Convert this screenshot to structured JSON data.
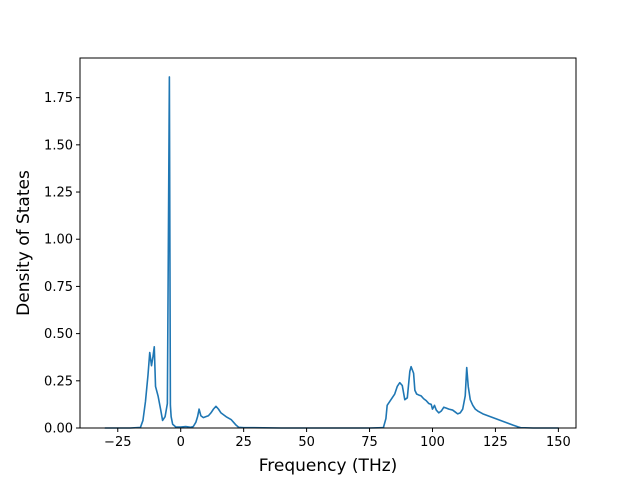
{
  "chart_data": {
    "type": "line",
    "title": "",
    "xlabel": "Frequency (THz)",
    "ylabel": "Density of States",
    "xlim": [
      -40,
      157
    ],
    "ylim": [
      0,
      1.96
    ],
    "xticks": [
      -25,
      0,
      25,
      50,
      75,
      100,
      125,
      150
    ],
    "yticks": [
      0.0,
      0.25,
      0.5,
      0.75,
      1.0,
      1.25,
      1.5,
      1.75
    ],
    "xtick_labels": [
      "−25",
      "0",
      "25",
      "50",
      "75",
      "100",
      "125",
      "150"
    ],
    "ytick_labels": [
      "0.00",
      "0.25",
      "0.50",
      "0.75",
      "1.00",
      "1.25",
      "1.50",
      "1.75"
    ],
    "grid": false,
    "legend": "none",
    "series": [
      {
        "color": "#1f77b4",
        "points": [
          [
            -30,
            0
          ],
          [
            -20,
            0
          ],
          [
            -16,
            0.003
          ],
          [
            -15,
            0.04
          ],
          [
            -14,
            0.14
          ],
          [
            -13,
            0.28
          ],
          [
            -12.3,
            0.4
          ],
          [
            -11.6,
            0.33
          ],
          [
            -11,
            0.38
          ],
          [
            -10.5,
            0.43
          ],
          [
            -10,
            0.22
          ],
          [
            -9,
            0.17
          ],
          [
            -8,
            0.1
          ],
          [
            -7.2,
            0.04
          ],
          [
            -6.2,
            0.06
          ],
          [
            -5.3,
            0.13
          ],
          [
            -4.5,
            1.86
          ],
          [
            -4.1,
            0.12
          ],
          [
            -3.8,
            0.06
          ],
          [
            -3.2,
            0.02
          ],
          [
            -2,
            0.006
          ],
          [
            0,
            0.005
          ],
          [
            2,
            0.008
          ],
          [
            4,
            0.004
          ],
          [
            5,
            0.008
          ],
          [
            6,
            0.03
          ],
          [
            6.7,
            0.06
          ],
          [
            7.3,
            0.1
          ],
          [
            8,
            0.065
          ],
          [
            9,
            0.055
          ],
          [
            10,
            0.06
          ],
          [
            11,
            0.065
          ],
          [
            12,
            0.08
          ],
          [
            13,
            0.1
          ],
          [
            14,
            0.115
          ],
          [
            15,
            0.1
          ],
          [
            16,
            0.08
          ],
          [
            18,
            0.06
          ],
          [
            20,
            0.045
          ],
          [
            21,
            0.03
          ],
          [
            22,
            0.015
          ],
          [
            23,
            0.004
          ],
          [
            25,
            0.002
          ],
          [
            40,
            0
          ],
          [
            60,
            0
          ],
          [
            75,
            0
          ],
          [
            80.5,
            0.002
          ],
          [
            81.5,
            0.05
          ],
          [
            82,
            0.12
          ],
          [
            83,
            0.14
          ],
          [
            84,
            0.16
          ],
          [
            85,
            0.18
          ],
          [
            86,
            0.22
          ],
          [
            87,
            0.24
          ],
          [
            88,
            0.225
          ],
          [
            89,
            0.15
          ],
          [
            90,
            0.16
          ],
          [
            91,
            0.3
          ],
          [
            91.5,
            0.325
          ],
          [
            92.5,
            0.29
          ],
          [
            93,
            0.2
          ],
          [
            93.7,
            0.18
          ],
          [
            94.5,
            0.175
          ],
          [
            95.5,
            0.17
          ],
          [
            96.5,
            0.155
          ],
          [
            97.5,
            0.145
          ],
          [
            98.5,
            0.13
          ],
          [
            99.5,
            0.125
          ],
          [
            100,
            0.1
          ],
          [
            100.8,
            0.12
          ],
          [
            101.5,
            0.095
          ],
          [
            102.5,
            0.08
          ],
          [
            103.5,
            0.09
          ],
          [
            104.5,
            0.11
          ],
          [
            105.5,
            0.105
          ],
          [
            106.5,
            0.1
          ],
          [
            108,
            0.095
          ],
          [
            109,
            0.085
          ],
          [
            110,
            0.075
          ],
          [
            111,
            0.08
          ],
          [
            112,
            0.1
          ],
          [
            113,
            0.17
          ],
          [
            113.6,
            0.32
          ],
          [
            114.2,
            0.22
          ],
          [
            115,
            0.15
          ],
          [
            116,
            0.12
          ],
          [
            117,
            0.1
          ],
          [
            118,
            0.09
          ],
          [
            120,
            0.075
          ],
          [
            122,
            0.065
          ],
          [
            124,
            0.055
          ],
          [
            126,
            0.045
          ],
          [
            128,
            0.035
          ],
          [
            130,
            0.025
          ],
          [
            132,
            0.015
          ],
          [
            134,
            0.006
          ],
          [
            135,
            0.002
          ],
          [
            140,
            0
          ],
          [
            150,
            0
          ]
        ]
      }
    ]
  }
}
